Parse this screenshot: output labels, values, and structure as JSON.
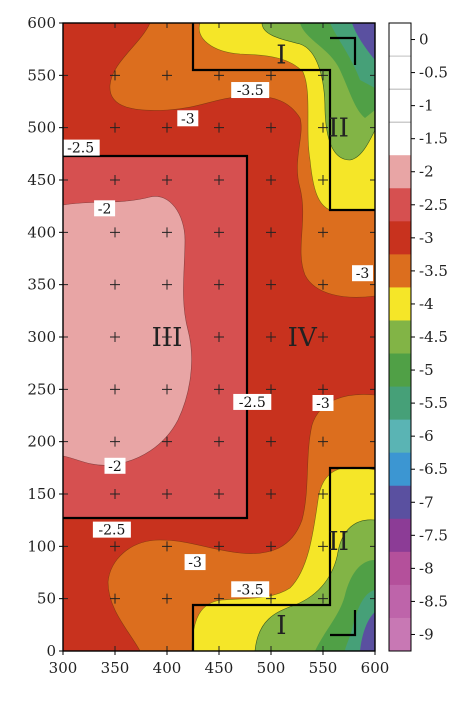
{
  "chart_data": {
    "type": "heatmap",
    "title": "",
    "xlabel": "",
    "ylabel": "",
    "xlim": [
      300,
      600
    ],
    "ylim": [
      0,
      600
    ],
    "x_ticks": [
      "300",
      "350",
      "400",
      "450",
      "500",
      "550",
      "600"
    ],
    "y_ticks": [
      "0",
      "50",
      "100",
      "150",
      "200",
      "250",
      "300",
      "350",
      "400",
      "450",
      "500",
      "550",
      "600"
    ],
    "colorbar": {
      "labels": [
        "0",
        "-0.5",
        "-1",
        "-1.5",
        "-2",
        "-2.5",
        "-3",
        "-3.5",
        "-4",
        "-4.5",
        "-5",
        "-5.5",
        "-6",
        "-6.5",
        "-7",
        "-7.5",
        "-8",
        "-8.5",
        "-9"
      ],
      "colors": [
        "#ffffff",
        "#ffffff",
        "#ffffff",
        "#ffffff",
        "#e8a5a5",
        "#d65050",
        "#c8321e",
        "#dc6e1e",
        "#f5e628",
        "#82b446",
        "#50a046",
        "#46a078",
        "#5ab4b4",
        "#3c96d2",
        "#5a50a0",
        "#8c3c96",
        "#b4509b",
        "#be64aa",
        "#c878b4"
      ]
    },
    "regions": [
      {
        "label": "I",
        "x": 510,
        "y": 570
      },
      {
        "label": "II",
        "x": 565,
        "y": 500
      },
      {
        "label": "III",
        "x": 400,
        "y": 300
      },
      {
        "label": "IV",
        "x": 530,
        "y": 300
      },
      {
        "label": "II",
        "x": 565,
        "y": 105
      },
      {
        "label": "I",
        "x": 510,
        "y": 25
      }
    ],
    "contour_labels": [
      {
        "text": "-3.5",
        "x": 480,
        "y": 535
      },
      {
        "text": "-3",
        "x": 420,
        "y": 508
      },
      {
        "text": "-2.5",
        "x": 317,
        "y": 480
      },
      {
        "text": "-2",
        "x": 340,
        "y": 422
      },
      {
        "text": "-3",
        "x": 588,
        "y": 360
      },
      {
        "text": "-2.5",
        "x": 482,
        "y": 237
      },
      {
        "text": "-3",
        "x": 550,
        "y": 236
      },
      {
        "text": "-2",
        "x": 350,
        "y": 176
      },
      {
        "text": "-2.5",
        "x": 347,
        "y": 115
      },
      {
        "text": "-3",
        "x": 427,
        "y": 84
      },
      {
        "text": "-3.5",
        "x": 480,
        "y": 58
      }
    ]
  }
}
